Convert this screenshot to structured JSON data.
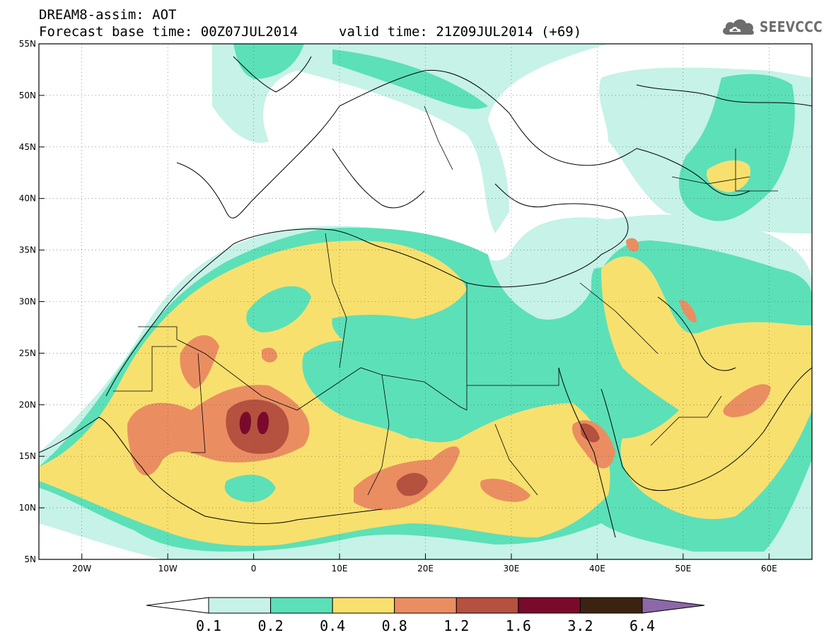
{
  "header": {
    "model_title": "DREAM8-assim: AOT",
    "base_time": "Forecast base time: 00Z07JUL2014",
    "valid_time": "valid time: 21Z09JUL2014 (+69)"
  },
  "logo": {
    "text": "SEEVCCC",
    "icon": "cloud-icon"
  },
  "map": {
    "lon_range": [
      -25,
      65
    ],
    "lat_range": [
      5,
      55
    ],
    "grid": "dotted",
    "x_ticks": [
      {
        "lon": -20,
        "label": "20W"
      },
      {
        "lon": -10,
        "label": "10W"
      },
      {
        "lon": 0,
        "label": "0"
      },
      {
        "lon": 10,
        "label": "10E"
      },
      {
        "lon": 20,
        "label": "20E"
      },
      {
        "lon": 30,
        "label": "30E"
      },
      {
        "lon": 40,
        "label": "40E"
      },
      {
        "lon": 50,
        "label": "50E"
      },
      {
        "lon": 60,
        "label": "60E"
      }
    ],
    "y_ticks": [
      {
        "lat": 5,
        "label": "5N"
      },
      {
        "lat": 10,
        "label": "10N"
      },
      {
        "lat": 15,
        "label": "15N"
      },
      {
        "lat": 20,
        "label": "20N"
      },
      {
        "lat": 25,
        "label": "25N"
      },
      {
        "lat": 30,
        "label": "30N"
      },
      {
        "lat": 35,
        "label": "35N"
      },
      {
        "lat": 40,
        "label": "40N"
      },
      {
        "lat": 45,
        "label": "45N"
      },
      {
        "lat": 50,
        "label": "50N"
      },
      {
        "lat": 55,
        "label": "55N"
      }
    ]
  },
  "colorbar": {
    "levels": [
      "0.1",
      "0.2",
      "0.4",
      "0.8",
      "1.2",
      "1.6",
      "3.2",
      "6.4"
    ],
    "colors": [
      "#ffffff",
      "#c6f2e8",
      "#5ce0b8",
      "#f8e06e",
      "#ea8e62",
      "#b5513f",
      "#7a0a2b",
      "#3c2311",
      "#8c68a8"
    ]
  }
}
